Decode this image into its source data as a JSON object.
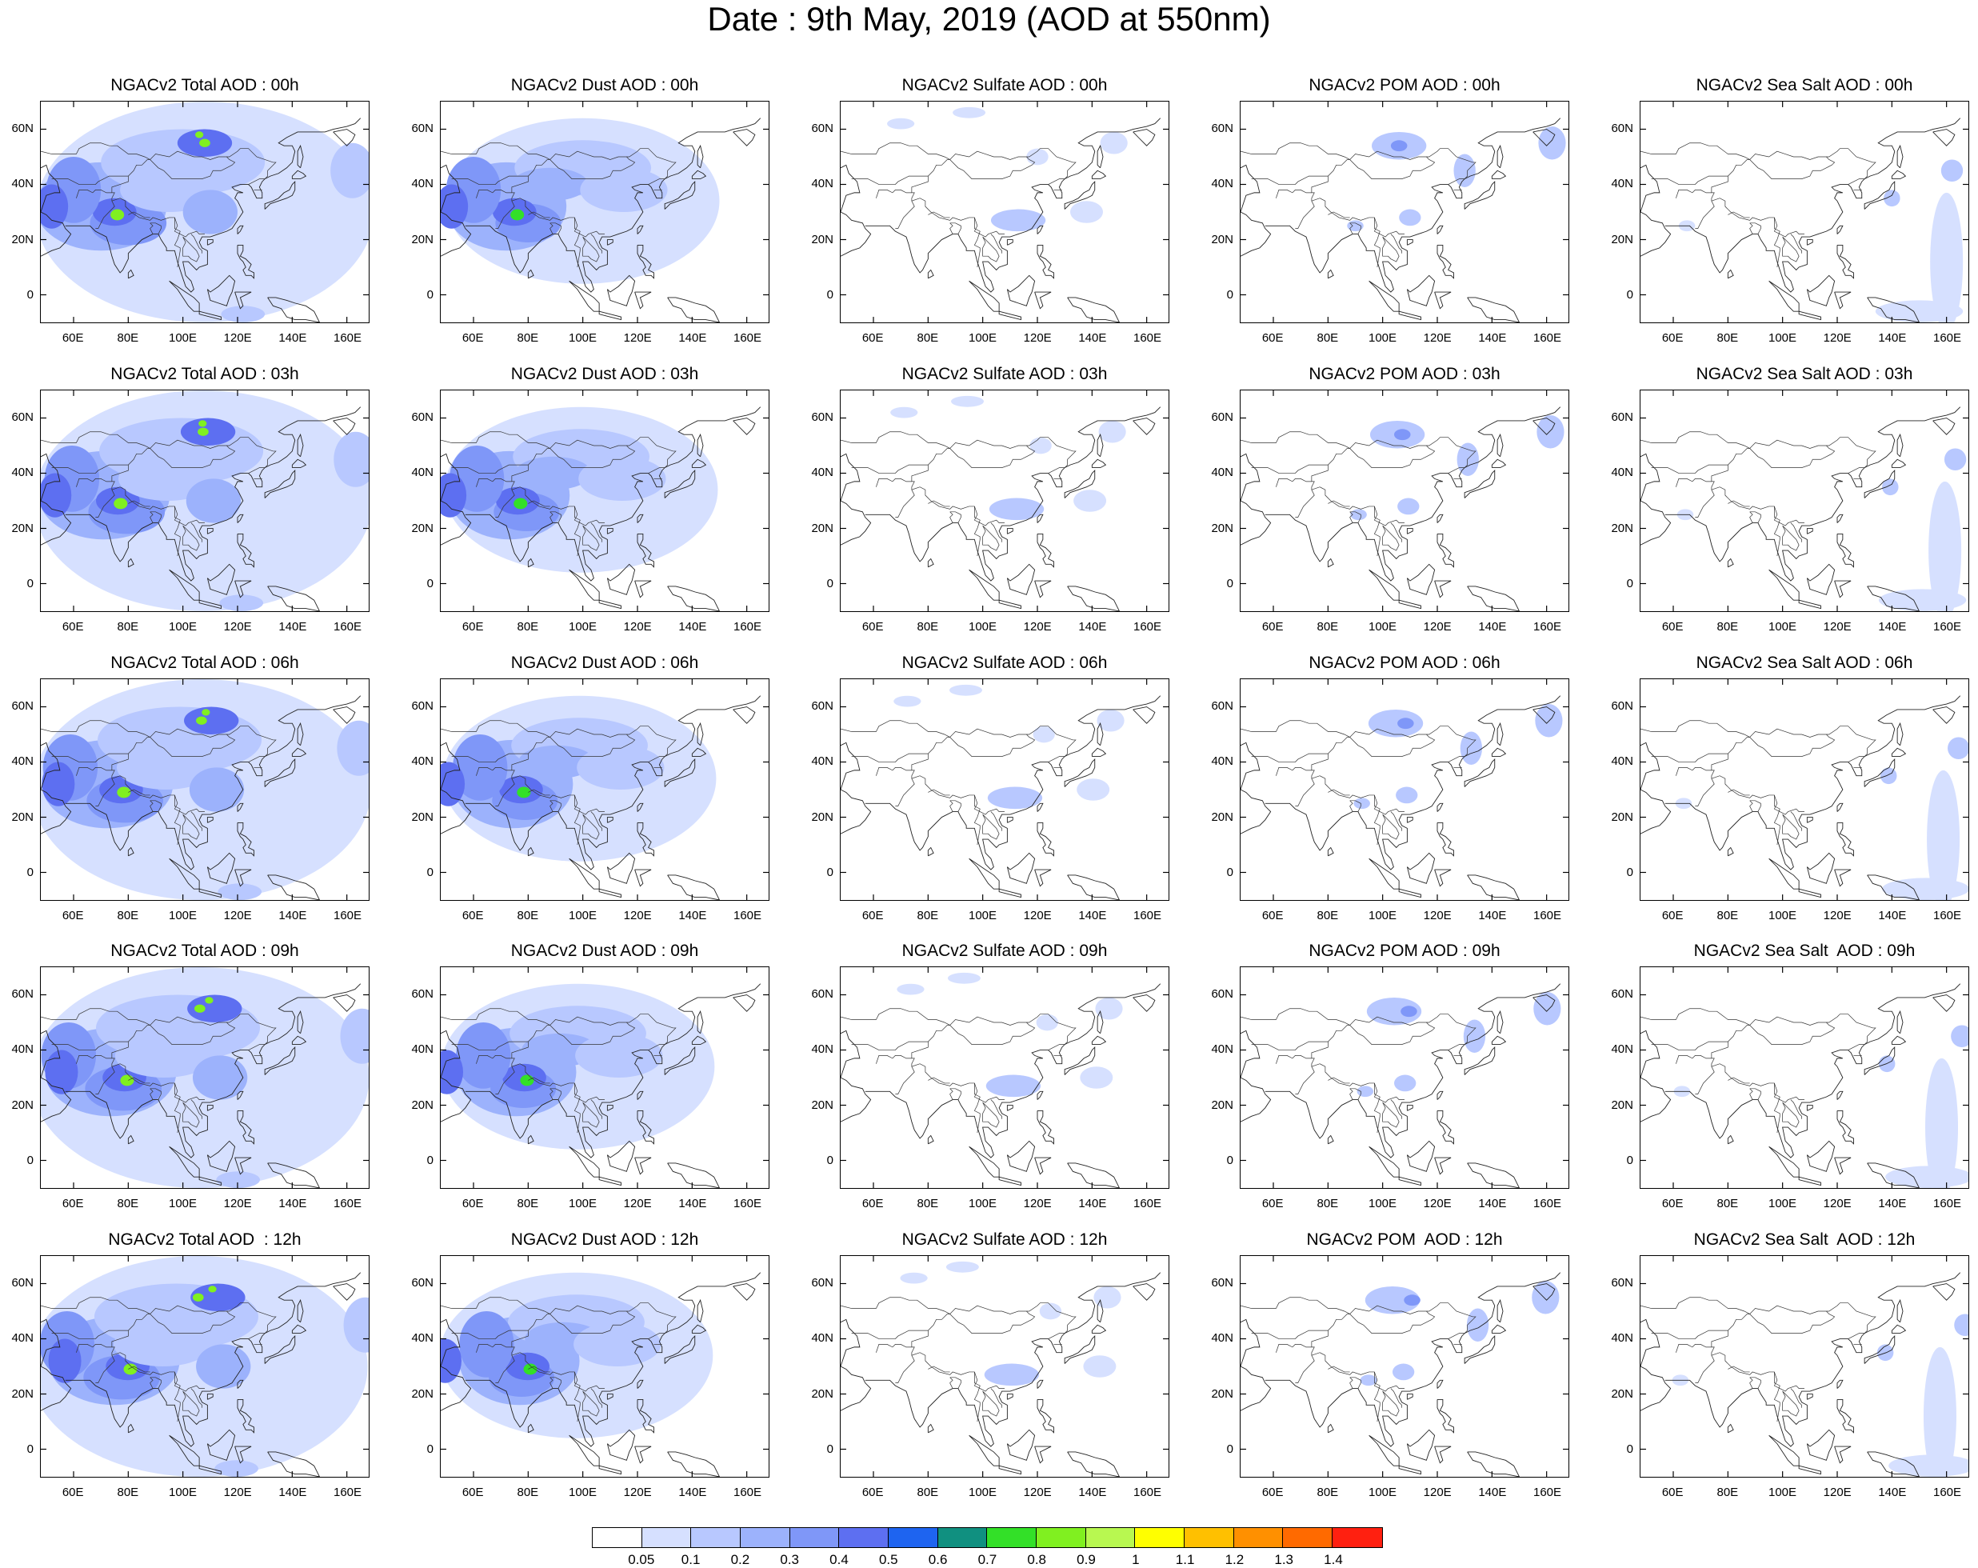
{
  "title": "Date : 9th May, 2019 (AOD at 550nm)",
  "lat_ticks": [
    "60N",
    "40N",
    "20N",
    "0"
  ],
  "lon_ticks": [
    "60E",
    "80E",
    "100E",
    "120E",
    "140E",
    "160E"
  ],
  "species": [
    "Total",
    "Dust",
    "Sulfate",
    "POM",
    "Sea Salt"
  ],
  "panel_titles": [
    [
      "NGACv2 Total AOD : 00h",
      "NGACv2 Dust AOD : 00h",
      "NGACv2 Sulfate AOD : 00h",
      "NGACv2 POM AOD : 00h",
      "NGACv2 Sea Salt AOD : 00h"
    ],
    [
      "NGACv2 Total AOD : 03h",
      "NGACv2 Dust AOD : 03h",
      "NGACv2 Sulfate AOD : 03h",
      "NGACv2 POM AOD : 03h",
      "NGACv2 Sea Salt AOD : 03h"
    ],
    [
      "NGACv2 Total AOD : 06h",
      "NGACv2 Dust AOD : 06h",
      "NGACv2 Sulfate AOD : 06h",
      "NGACv2 POM AOD : 06h",
      "NGACv2 Sea Salt AOD : 06h"
    ],
    [
      "NGACv2 Total AOD : 09h",
      "NGACv2 Dust AOD : 09h",
      "NGACv2 Sulfate AOD : 09h",
      "NGACv2 POM AOD : 09h",
      "NGACv2 Sea Salt  AOD : 09h"
    ],
    [
      "NGACv2 Total AOD  : 12h",
      "NGACv2 Dust AOD : 12h",
      "NGACv2 Sulfate AOD : 12h",
      "NGACv2 POM  AOD : 12h",
      "NGACv2 Sea Salt  AOD : 12h"
    ]
  ],
  "colorbar": {
    "labels": [
      "0.05",
      "0.1",
      "0.2",
      "0.3",
      "0.4",
      "0.5",
      "0.6",
      "0.7",
      "0.8",
      "0.9",
      "1",
      "1.1",
      "1.2",
      "1.3",
      "1.4"
    ],
    "colors": [
      "#ffffff",
      "#d6e0ff",
      "#b8c8ff",
      "#9cb2fc",
      "#7f97f8",
      "#5d6ff1",
      "#1e64f0",
      "#109080",
      "#33e028",
      "#80f020",
      "#b8f850",
      "#ffff00",
      "#ffc000",
      "#ff9000",
      "#ff6a00",
      "#ff2010"
    ]
  },
  "map_extent": {
    "lon": [
      48,
      168
    ],
    "lat": [
      -10,
      70
    ]
  }
}
